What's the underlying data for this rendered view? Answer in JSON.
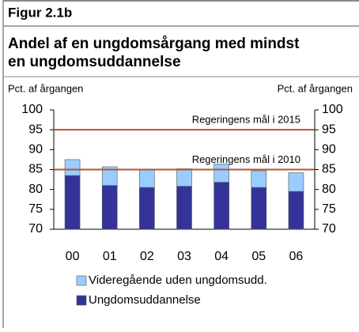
{
  "chart_data": {
    "type": "bar",
    "stacked": true,
    "figure_label": "Figur 2.1b",
    "title": "Andel af en ungdomsårgang med mindst en ungdomsuddannelse",
    "title_lines": [
      "Andel af en ungdomsårgang med mindst",
      "en ungdomsuddannelse"
    ],
    "ylabel": "Pct. af årgangen",
    "y2label": "Pct. af årgangen",
    "categories": [
      "00",
      "01",
      "02",
      "03",
      "04",
      "05",
      "06"
    ],
    "series": [
      {
        "name": "Ungdomsuddannelse",
        "color": "#333399",
        "values": [
          83.5,
          81,
          80.5,
          80.8,
          81.8,
          80.5,
          79.5
        ]
      },
      {
        "name": "Videregående uden ungdomsudd.",
        "color": "#99ccff",
        "values": [
          4.0,
          4.7,
          4.4,
          4.4,
          4.6,
          4.2,
          4.7
        ]
      }
    ],
    "ylim": [
      70,
      100
    ],
    "yticks": [
      70,
      75,
      80,
      85,
      90,
      95,
      100
    ],
    "y2lim": [
      70,
      100
    ],
    "y2ticks": [
      70,
      75,
      80,
      85,
      90,
      95,
      100
    ],
    "reference_lines": [
      {
        "value": 95,
        "label": "Regeringens mål i 2015",
        "color": "#b5552a"
      },
      {
        "value": 85,
        "label": "Regeringens mål i 2010",
        "color": "#b5552a"
      }
    ]
  }
}
